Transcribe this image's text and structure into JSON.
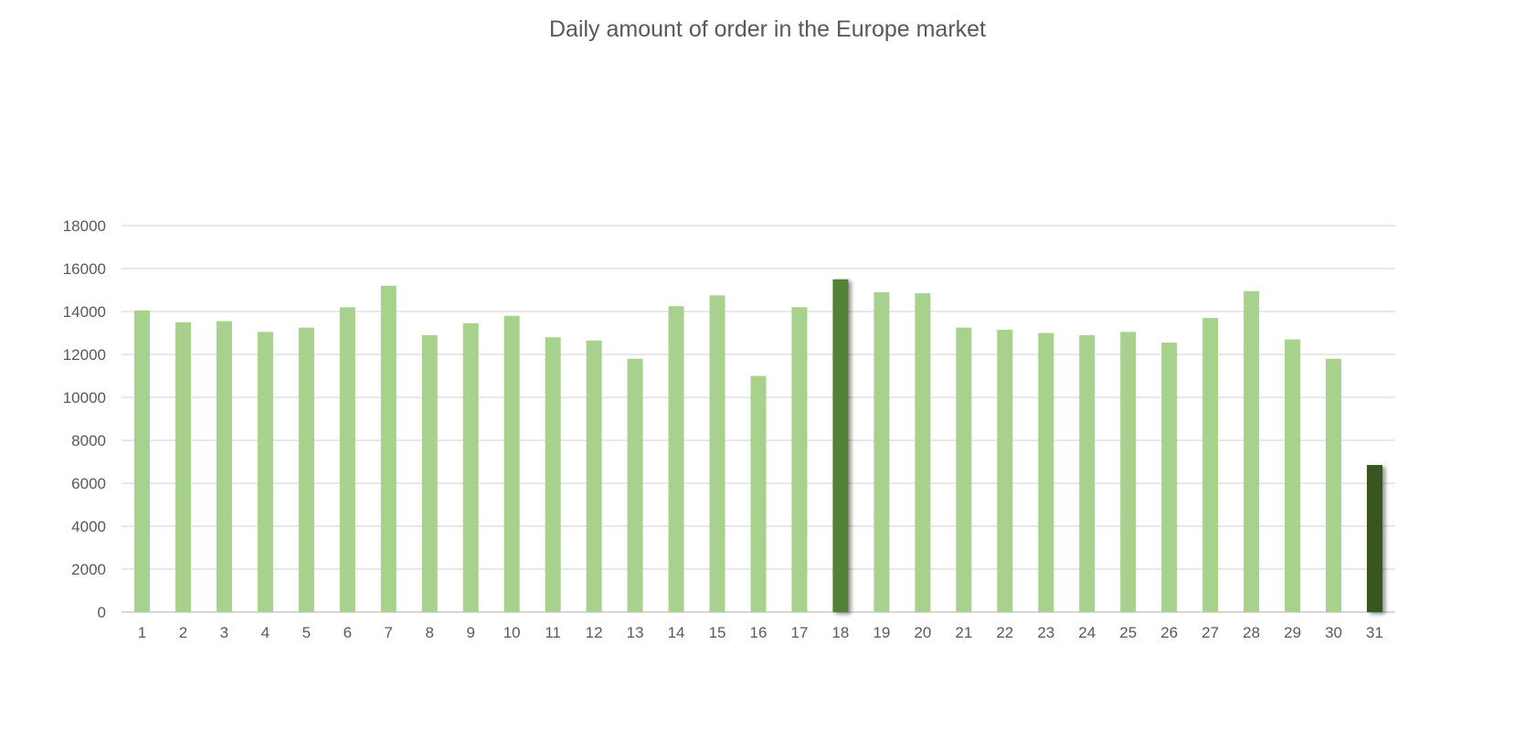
{
  "chart_data": {
    "type": "bar",
    "title": "Daily amount of order in the Europe market",
    "xlabel": "",
    "ylabel": "",
    "categories": [
      "1",
      "2",
      "3",
      "4",
      "5",
      "6",
      "7",
      "8",
      "9",
      "10",
      "11",
      "12",
      "13",
      "14",
      "15",
      "16",
      "17",
      "18",
      "19",
      "20",
      "21",
      "22",
      "23",
      "24",
      "25",
      "26",
      "27",
      "28",
      "29",
      "30",
      "31"
    ],
    "values": [
      14050,
      13500,
      13550,
      13050,
      13250,
      14200,
      15200,
      12900,
      13450,
      13800,
      12800,
      12650,
      11800,
      14250,
      14750,
      11000,
      14200,
      15500,
      14900,
      14850,
      13250,
      13150,
      13000,
      12900,
      13050,
      12550,
      13700,
      14950,
      12700,
      11800,
      6850
    ],
    "ylim": [
      0,
      18000
    ],
    "yticks": [
      0,
      2000,
      4000,
      6000,
      8000,
      10000,
      12000,
      14000,
      16000,
      18000
    ],
    "grid": true,
    "legend": "none",
    "colors": {
      "default_bar": "#a9d18e",
      "highlight_max": "#538135",
      "highlight_last": "#375623",
      "gridline": "#d9d9d9",
      "axis_line": "#bfbfbf",
      "text": "#595959"
    },
    "highlighted": {
      "18": "highlight_max",
      "31": "highlight_last"
    }
  }
}
